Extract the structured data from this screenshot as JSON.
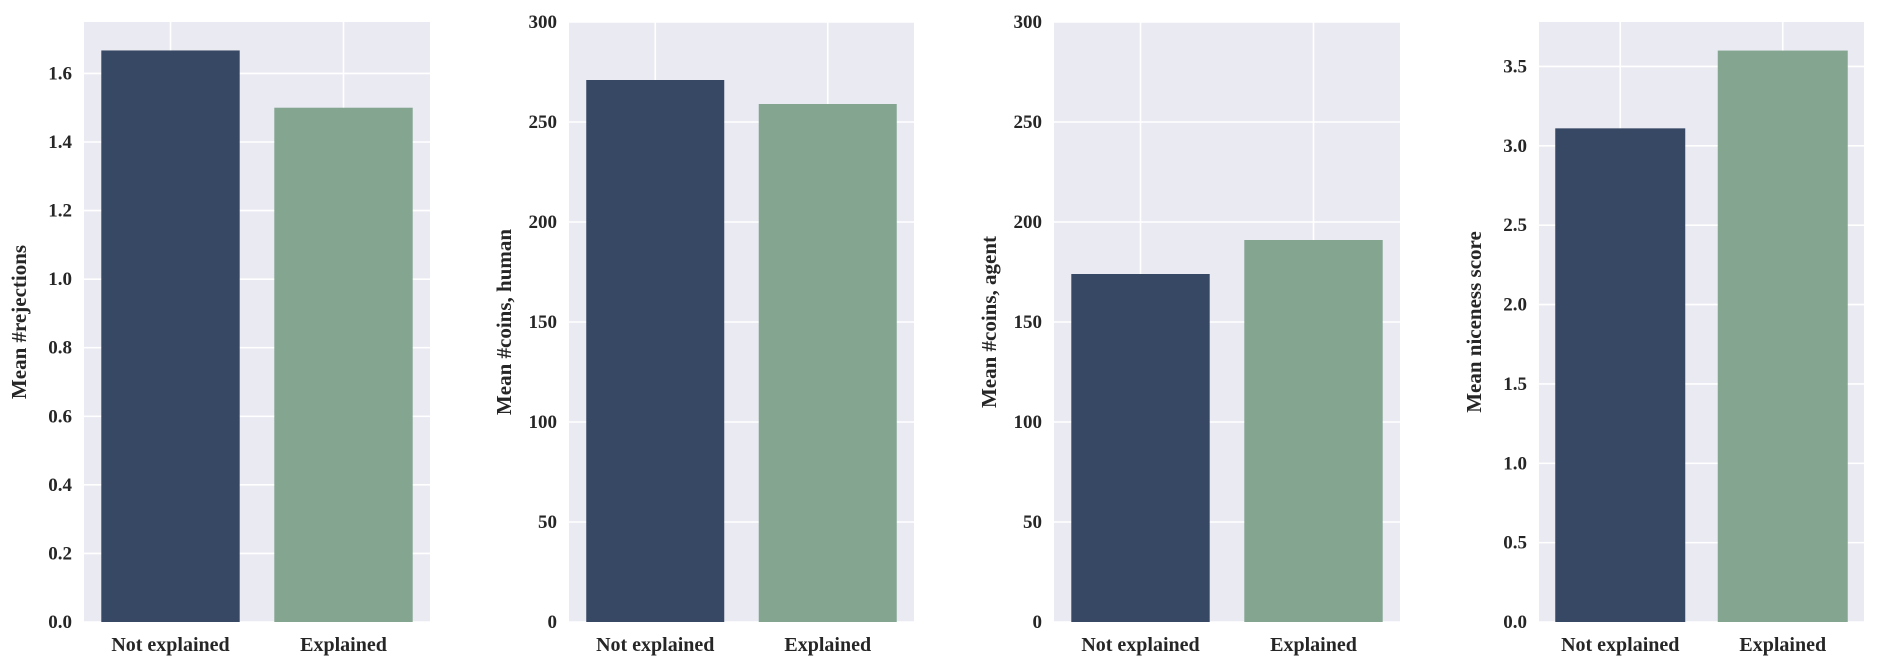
{
  "chart_data": [
    {
      "type": "bar",
      "categories": [
        "Not explained",
        "Explained"
      ],
      "values": [
        1.667,
        1.5
      ],
      "colors": [
        "#374864",
        "#84a691"
      ],
      "ylabel": "Mean #rejections",
      "ylim": [
        0,
        1.75
      ],
      "yticks": [
        0.0,
        0.2,
        0.4,
        0.6,
        0.8,
        1.0,
        1.2,
        1.4,
        1.6
      ],
      "ytick_labels": [
        "0.0",
        "0.2",
        "0.4",
        "0.6",
        "0.8",
        "1.0",
        "1.2",
        "1.4",
        "1.6"
      ],
      "grid": true
    },
    {
      "type": "bar",
      "categories": [
        "Not explained",
        "Explained"
      ],
      "values": [
        271,
        259
      ],
      "colors": [
        "#374864",
        "#84a691"
      ],
      "ylabel": "Mean #coins, human",
      "ylim": [
        0,
        300
      ],
      "yticks": [
        0,
        50,
        100,
        150,
        200,
        250,
        300
      ],
      "ytick_labels": [
        "0",
        "50",
        "100",
        "150",
        "200",
        "250",
        "300"
      ],
      "grid": true
    },
    {
      "type": "bar",
      "categories": [
        "Not explained",
        "Explained"
      ],
      "values": [
        174,
        191
      ],
      "colors": [
        "#374864",
        "#84a691"
      ],
      "ylabel": "Mean #coins, agent",
      "ylim": [
        0,
        300
      ],
      "yticks": [
        0,
        50,
        100,
        150,
        200,
        250,
        300
      ],
      "ytick_labels": [
        "0",
        "50",
        "100",
        "150",
        "200",
        "250",
        "300"
      ],
      "grid": true
    },
    {
      "type": "bar",
      "categories": [
        "Not explained",
        "Explained"
      ],
      "values": [
        3.11,
        3.6
      ],
      "colors": [
        "#374864",
        "#84a691"
      ],
      "ylabel": "Mean niceness score",
      "ylim": [
        0,
        3.78
      ],
      "yticks": [
        0.0,
        0.5,
        1.0,
        1.5,
        2.0,
        2.5,
        3.0,
        3.5
      ],
      "ytick_labels": [
        "0.0",
        "0.5",
        "1.0",
        "1.5",
        "2.0",
        "2.5",
        "3.0",
        "3.5"
      ],
      "grid": true
    }
  ],
  "style": {
    "plot_background": "#eaeaf2",
    "grid_color": "#ffffff"
  }
}
